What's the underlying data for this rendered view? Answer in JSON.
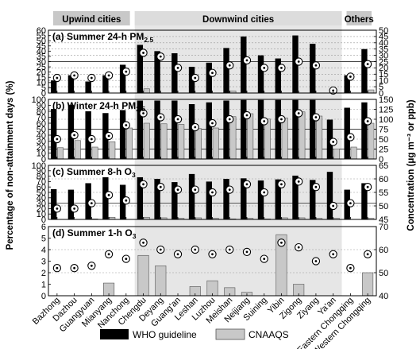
{
  "chart_data": {
    "type": "bar",
    "categories": [
      "Bazhong",
      "Dazhou",
      "Guangyuan",
      "Mianyang",
      "Nanchong",
      "Chengdu",
      "Deyang",
      "Guang'an",
      "Leshan",
      "Luzhou",
      "Meishan",
      "Neijiang",
      "Suining",
      "Yibin",
      "Zigong",
      "Ziyang",
      "Ya'an",
      "Eastern Chongqing",
      "Western Chongqing"
    ],
    "groups": [
      {
        "label": "Upwind cities",
        "from": 0,
        "to": 4
      },
      {
        "label": "Downwind cities",
        "from": 5,
        "to": 16
      },
      {
        "label": "Others",
        "from": 17,
        "to": 18
      }
    ],
    "ylabel_left": "Percentage of non-attainment days (%)",
    "ylabel_right": "Concentration (μg m⁻³ or ppb)",
    "legend": [
      "WHO guideline",
      "CNAAQS"
    ],
    "panels": [
      {
        "title": "(a) Summer 24-h PM",
        "title_sub": "2.5",
        "ylim": [
          0,
          60
        ],
        "yticks": [
          0,
          5,
          10,
          15,
          20,
          25,
          30,
          35,
          40,
          45,
          50,
          55,
          60
        ],
        "ylim_right": [
          0,
          50
        ],
        "yticks_right": [
          0,
          5,
          10,
          15,
          20,
          25,
          30,
          35,
          40,
          45,
          50
        ],
        "ref_lines_right": [
          25
        ],
        "series": [
          {
            "name": "WHO guideline",
            "values": [
              12,
              17,
              11,
              17,
              27,
              46,
              40,
              38,
              25,
              29,
              43,
              54,
              36,
              33,
              55,
              47,
              0,
              17,
              42
            ]
          },
          {
            "name": "CNAAQS",
            "values": [
              0,
              0,
              0,
              0,
              0,
              4,
              0,
              0,
              0,
              0,
              2,
              0,
              0,
              0,
              0,
              0,
              0,
              0,
              3
            ]
          },
          {
            "name": "Concentration",
            "values": [
              12,
              14,
              12,
              14,
              17,
              32,
              29,
              20,
              12,
              16,
              22,
              26,
              20,
              20,
              25,
              22,
              2,
              13,
              23
            ]
          }
        ]
      },
      {
        "title": "(b) Winter 24-h PM",
        "title_sub": "2.5",
        "ylim": [
          0,
          100
        ],
        "yticks": [
          0,
          10,
          20,
          30,
          40,
          50,
          60,
          70,
          80,
          90,
          100
        ],
        "ylim_right": [
          0,
          150
        ],
        "yticks_right": [
          0,
          25,
          50,
          75,
          100,
          125,
          150
        ],
        "ref_lines_right": [
          25,
          75
        ],
        "series": [
          {
            "name": "WHO guideline",
            "values": [
              84,
              91,
              80,
              77,
              82,
              98,
              98,
              98,
              92,
              95,
              98,
              99,
              99,
              99,
              99,
              99,
              66,
              86,
              95
            ]
          },
          {
            "name": "CNAAQS",
            "values": [
              19,
              31,
              20,
              29,
              52,
              60,
              59,
              58,
              51,
              52,
              71,
              76,
              67,
              69,
              79,
              72,
              17,
              20,
              60
            ]
          },
          {
            "name": "Concentration",
            "values": [
              50,
              60,
              50,
              58,
              85,
              115,
              105,
              100,
              80,
              90,
              100,
              110,
              95,
              100,
              115,
              105,
              43,
              55,
              95
            ]
          }
        ]
      },
      {
        "title": "(c) Summer 8-h O",
        "title_sub": "3",
        "ylim": [
          0,
          100
        ],
        "yticks": [
          0,
          10,
          20,
          30,
          40,
          50,
          60,
          70,
          80,
          90,
          100
        ],
        "ylim_right": [
          45,
          65
        ],
        "yticks_right": [
          45,
          50,
          55,
          60,
          65
        ],
        "ref_lines_right": [
          51
        ],
        "series": [
          {
            "name": "WHO guideline",
            "values": [
              56,
              55,
              67,
              78,
              64,
              78,
              75,
              69,
              84,
              70,
              75,
              76,
              72,
              74,
              81,
              73,
              88,
              55,
              67
            ]
          },
          {
            "name": "CNAAQS",
            "values": [
              0,
              0,
              1,
              4,
              0,
              4,
              3,
              2,
              3,
              2,
              1,
              2,
              1,
              3,
              3,
              2,
              2,
              0,
              2
            ]
          },
          {
            "name": "Concentration",
            "values": [
              49,
              49,
              51,
              54,
              52,
              58,
              57,
              56,
              56,
              55,
              56,
              58,
              55,
              58,
              59,
              57,
              50,
              51,
              57
            ]
          }
        ]
      },
      {
        "title": "(d) Summer 1-h O",
        "title_sub": "3",
        "ylim": [
          0,
          6
        ],
        "yticks": [
          0,
          1,
          2,
          3,
          4,
          5,
          6
        ],
        "ylim_right": [
          40,
          70
        ],
        "yticks_right": [
          40,
          50,
          60,
          70
        ],
        "ref_lines_right": [],
        "series": [
          {
            "name": "CNAAQS",
            "values": [
              0,
              0,
              0,
              1.1,
              0,
              3.5,
              2.6,
              0,
              0.8,
              1.3,
              0.7,
              0.3,
              0,
              5.3,
              1.0,
              0,
              0,
              0,
              2.0
            ]
          },
          {
            "name": "Concentration",
            "values": [
              52,
              52,
              53,
              58,
              56,
              63,
              60,
              58,
              60,
              58,
              60,
              59,
              56,
              63,
              61,
              55,
              58,
              52,
              58
            ]
          }
        ]
      }
    ]
  }
}
